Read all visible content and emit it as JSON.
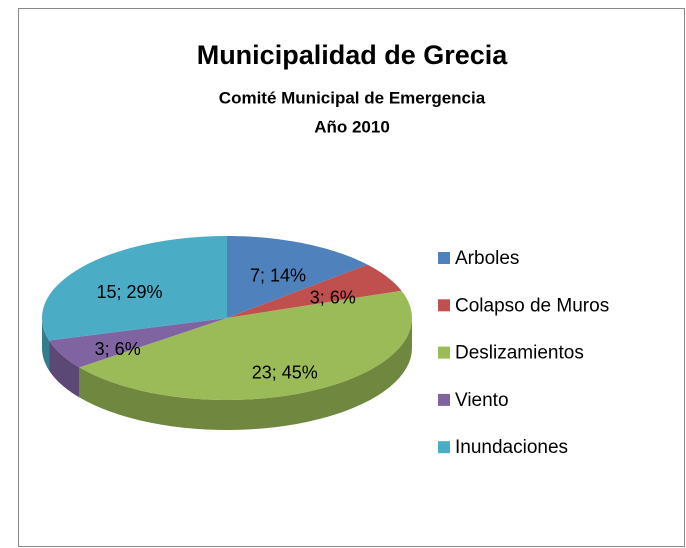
{
  "chart_data": {
    "type": "pie",
    "title": "Municipalidad de Grecia",
    "subtitle": [
      "Comité Municipal de Emergencia",
      "Año 2010"
    ],
    "categories": [
      "Arboles",
      "Colapso de Muros",
      "Deslizamientos",
      "Viento",
      "Inundaciones"
    ],
    "values": [
      7,
      3,
      23,
      3,
      15
    ],
    "value_labels": [
      "7; 14%",
      "3; 6%",
      "23; 45%",
      "3; 6%",
      "15; 29%"
    ],
    "colors": [
      "#4f81bd",
      "#c0504d",
      "#9bbb59",
      "#8064a2",
      "#4bacc6"
    ],
    "legend": "right"
  }
}
